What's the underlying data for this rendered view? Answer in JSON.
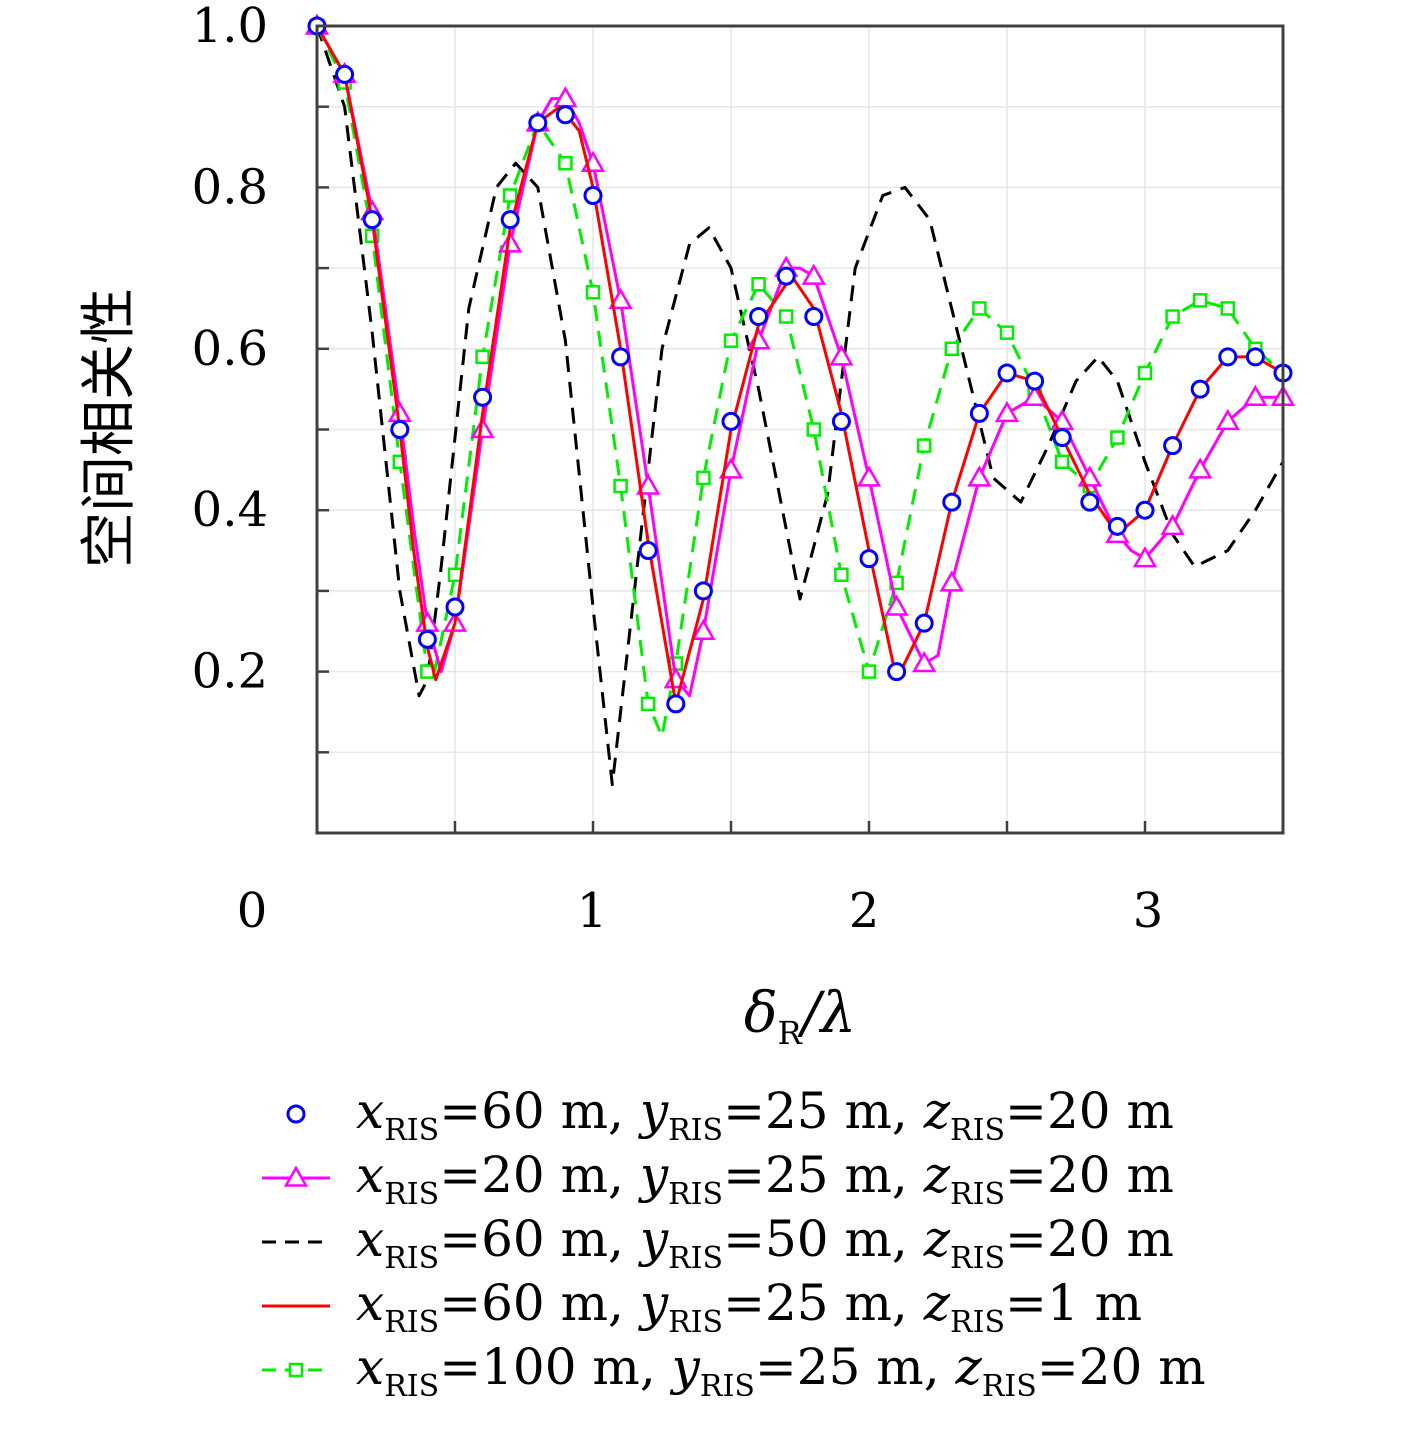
{
  "chart_data": {
    "type": "line",
    "ylabel": "空间相关性",
    "xlabel": "δR/λ",
    "xlabel_parts": {
      "main": "δ",
      "sub": "R",
      "tail": "/λ"
    },
    "xlim": [
      0,
      3.5
    ],
    "ylim": [
      0,
      1.0
    ],
    "xticks": [
      0,
      1,
      2,
      3
    ],
    "xtick_labels": [
      "0",
      "1",
      "2",
      "3"
    ],
    "yticks": [
      0.2,
      0.4,
      0.6,
      0.8,
      1.0
    ],
    "ytick_labels": [
      "0.2",
      "0.4",
      "0.6",
      "0.8",
      "1.0"
    ],
    "grid": true,
    "legend_position": "bottom",
    "series": [
      {
        "name": "xRIS=60 m, yRIS=25 m, zRIS=20 m",
        "legend_parts": [
          [
            "x",
            "RIS",
            "=60 m, "
          ],
          [
            "y",
            "RIS",
            "=25 m, "
          ],
          [
            "z",
            "RIS",
            "=20 m"
          ]
        ],
        "color": "#0000ff",
        "line": "none",
        "marker": "circle",
        "x": [
          0,
          0.1,
          0.2,
          0.3,
          0.4,
          0.5,
          0.6,
          0.7,
          0.8,
          0.9,
          1.0,
          1.1,
          1.2,
          1.3,
          1.4,
          1.5,
          1.6,
          1.7,
          1.8,
          1.9,
          2.0,
          2.1,
          2.2,
          2.3,
          2.4,
          2.5,
          2.6,
          2.7,
          2.8,
          2.9,
          3.0,
          3.1,
          3.2,
          3.3,
          3.4,
          3.5
        ],
        "y": [
          1.0,
          0.94,
          0.76,
          0.5,
          0.24,
          0.28,
          0.54,
          0.76,
          0.88,
          0.89,
          0.79,
          0.59,
          0.35,
          0.16,
          0.3,
          0.51,
          0.64,
          0.69,
          0.64,
          0.51,
          0.34,
          0.2,
          0.26,
          0.41,
          0.52,
          0.57,
          0.56,
          0.49,
          0.41,
          0.38,
          0.4,
          0.48,
          0.55,
          0.59,
          0.59,
          0.57
        ]
      },
      {
        "name": "xRIS=20 m, yRIS=25 m, zRIS=20 m",
        "legend_parts": [
          [
            "x",
            "RIS",
            "=20 m, "
          ],
          [
            "y",
            "RIS",
            "=25 m, "
          ],
          [
            "z",
            "RIS",
            "=20 m"
          ]
        ],
        "color": "#ff00ff",
        "line": "solid",
        "marker": "triangle",
        "marker_x": [
          0,
          0.1,
          0.2,
          0.3,
          0.4,
          0.5,
          0.6,
          0.7,
          0.8,
          0.9,
          1.0,
          1.1,
          1.2,
          1.3,
          1.4,
          1.5,
          1.6,
          1.7,
          1.8,
          1.9,
          2.0,
          2.1,
          2.2,
          2.3,
          2.4,
          2.5,
          2.6,
          2.7,
          2.8,
          2.9,
          3.0,
          3.1,
          3.2,
          3.3,
          3.4,
          3.5
        ],
        "x": [
          0,
          0.1,
          0.2,
          0.3,
          0.35,
          0.4,
          0.45,
          0.5,
          0.6,
          0.7,
          0.8,
          0.85,
          0.9,
          0.95,
          1.0,
          1.1,
          1.2,
          1.3,
          1.35,
          1.4,
          1.5,
          1.6,
          1.7,
          1.75,
          1.8,
          1.9,
          2.0,
          2.1,
          2.2,
          2.25,
          2.3,
          2.4,
          2.5,
          2.6,
          2.7,
          2.8,
          2.9,
          2.95,
          3.0,
          3.1,
          3.2,
          3.3,
          3.4,
          3.5
        ],
        "y": [
          1.0,
          0.94,
          0.77,
          0.52,
          0.38,
          0.26,
          0.2,
          0.26,
          0.5,
          0.73,
          0.88,
          0.91,
          0.91,
          0.88,
          0.83,
          0.66,
          0.43,
          0.19,
          0.17,
          0.25,
          0.45,
          0.61,
          0.7,
          0.7,
          0.69,
          0.59,
          0.44,
          0.28,
          0.21,
          0.22,
          0.31,
          0.44,
          0.52,
          0.54,
          0.51,
          0.44,
          0.37,
          0.35,
          0.34,
          0.38,
          0.45,
          0.51,
          0.54,
          0.54
        ]
      },
      {
        "name": "xRIS=60 m, yRIS=50 m, zRIS=20 m",
        "legend_parts": [
          [
            "x",
            "RIS",
            "=60 m, "
          ],
          [
            "y",
            "RIS",
            "=50 m, "
          ],
          [
            "z",
            "RIS",
            "=20 m"
          ]
        ],
        "color": "#000000",
        "line": "dashed",
        "marker": "none",
        "x": [
          0,
          0.1,
          0.2,
          0.3,
          0.37,
          0.4,
          0.45,
          0.55,
          0.65,
          0.72,
          0.8,
          0.9,
          1.0,
          1.07,
          1.15,
          1.25,
          1.35,
          1.42,
          1.5,
          1.6,
          1.75,
          1.85,
          1.95,
          2.05,
          2.13,
          2.22,
          2.35,
          2.45,
          2.55,
          2.65,
          2.75,
          2.83,
          2.9,
          3.0,
          3.1,
          3.18,
          3.3,
          3.4,
          3.5
        ],
        "y": [
          1.0,
          0.9,
          0.62,
          0.3,
          0.17,
          0.19,
          0.33,
          0.65,
          0.8,
          0.83,
          0.8,
          0.61,
          0.28,
          0.06,
          0.3,
          0.6,
          0.73,
          0.75,
          0.7,
          0.55,
          0.29,
          0.42,
          0.7,
          0.79,
          0.8,
          0.76,
          0.58,
          0.44,
          0.41,
          0.48,
          0.56,
          0.59,
          0.56,
          0.46,
          0.37,
          0.33,
          0.35,
          0.4,
          0.46
        ]
      },
      {
        "name": "xRIS=60 m, yRIS=25 m, zRIS=1 m",
        "legend_parts": [
          [
            "x",
            "RIS",
            "=60 m, "
          ],
          [
            "y",
            "RIS",
            "=25 m, "
          ],
          [
            "z",
            "RIS",
            "=1 m"
          ]
        ],
        "color": "#ff0000",
        "line": "solid",
        "marker": "none",
        "x": [
          0,
          0.1,
          0.2,
          0.3,
          0.35,
          0.4,
          0.43,
          0.5,
          0.6,
          0.7,
          0.8,
          0.88,
          0.95,
          1.0,
          1.1,
          1.2,
          1.3,
          1.4,
          1.5,
          1.6,
          1.72,
          1.8,
          1.9,
          2.0,
          2.1,
          2.2,
          2.3,
          2.4,
          2.5,
          2.6,
          2.7,
          2.8,
          2.9,
          3.0,
          3.1,
          3.2,
          3.3,
          3.4,
          3.5
        ],
        "y": [
          1.0,
          0.94,
          0.76,
          0.5,
          0.35,
          0.23,
          0.19,
          0.26,
          0.52,
          0.75,
          0.88,
          0.9,
          0.87,
          0.8,
          0.6,
          0.36,
          0.16,
          0.29,
          0.5,
          0.63,
          0.69,
          0.65,
          0.52,
          0.35,
          0.19,
          0.26,
          0.41,
          0.52,
          0.57,
          0.56,
          0.49,
          0.42,
          0.37,
          0.4,
          0.48,
          0.55,
          0.59,
          0.59,
          0.57
        ]
      },
      {
        "name": "xRIS=100 m, yRIS=25 m, zRIS=20 m",
        "legend_parts": [
          [
            "x",
            "RIS",
            "=100 m, "
          ],
          [
            "y",
            "RIS",
            "=25 m, "
          ],
          [
            "z",
            "RIS",
            "=20 m"
          ]
        ],
        "color": "#00ee00",
        "line": "dashed",
        "marker": "square",
        "x": [
          0,
          0.1,
          0.2,
          0.3,
          0.4,
          0.42,
          0.5,
          0.6,
          0.7,
          0.8,
          0.9,
          1.0,
          1.1,
          1.2,
          1.25,
          1.3,
          1.4,
          1.5,
          1.6,
          1.7,
          1.8,
          1.9,
          2.0,
          2.1,
          2.2,
          2.3,
          2.4,
          2.5,
          2.6,
          2.7,
          2.8,
          2.9,
          3.0,
          3.1,
          3.2,
          3.3,
          3.4,
          3.5
        ],
        "y": [
          1.0,
          0.93,
          0.74,
          0.46,
          0.2,
          0.19,
          0.32,
          0.59,
          0.79,
          0.88,
          0.83,
          0.67,
          0.43,
          0.16,
          0.12,
          0.21,
          0.44,
          0.61,
          0.68,
          0.64,
          0.5,
          0.32,
          0.2,
          0.31,
          0.48,
          0.6,
          0.65,
          0.62,
          0.55,
          0.46,
          0.43,
          0.49,
          0.57,
          0.64,
          0.66,
          0.65,
          0.6,
          0.57
        ],
        "marker_x": [
          0,
          0.1,
          0.2,
          0.3,
          0.4,
          0.5,
          0.6,
          0.7,
          0.8,
          0.9,
          1.0,
          1.1,
          1.2,
          1.3,
          1.4,
          1.5,
          1.6,
          1.7,
          1.8,
          1.9,
          2.0,
          2.1,
          2.2,
          2.3,
          2.4,
          2.5,
          2.6,
          2.7,
          2.8,
          2.9,
          3.0,
          3.1,
          3.2,
          3.3,
          3.4,
          3.5
        ],
        "marker_y": [
          1.0,
          0.93,
          0.74,
          0.46,
          0.2,
          0.32,
          0.59,
          0.79,
          0.88,
          0.83,
          0.67,
          0.43,
          0.16,
          0.21,
          0.44,
          0.61,
          0.68,
          0.64,
          0.5,
          0.32,
          0.2,
          0.31,
          0.48,
          0.6,
          0.65,
          0.62,
          0.55,
          0.46,
          0.43,
          0.49,
          0.57,
          0.64,
          0.66,
          0.65,
          0.6,
          0.57
        ]
      }
    ]
  }
}
